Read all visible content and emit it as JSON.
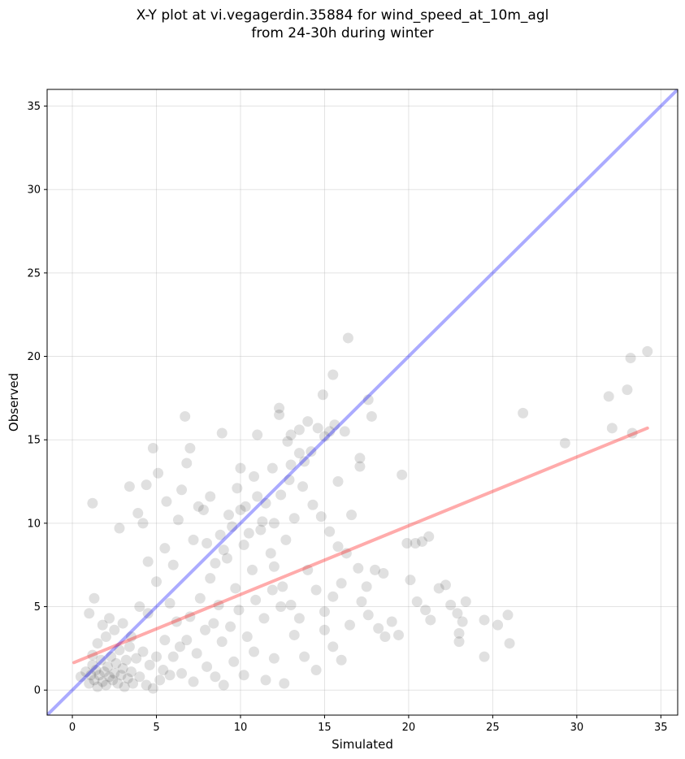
{
  "chart_data": {
    "type": "scatter",
    "title_line1": "X-Y plot at vi.vegagerdin.35884 for wind_speed_at_10m_agl",
    "title_line2": "from 24-30h during winter",
    "xlabel": "Simulated",
    "ylabel": "Observed",
    "xlim": [
      -1.5,
      36
    ],
    "ylim": [
      -1.5,
      36
    ],
    "xticks": [
      0,
      5,
      10,
      15,
      20,
      25,
      30,
      35
    ],
    "yticks": [
      0,
      5,
      10,
      15,
      20,
      25,
      30,
      35
    ],
    "grid": true,
    "point_color": "#000000",
    "point_opacity": 0.12,
    "identity_line": {
      "color": "#0000ff",
      "opacity": 0.33,
      "from": [
        -1.5,
        -1.5
      ],
      "to": [
        36,
        36
      ]
    },
    "fit_line": {
      "color": "#ff0000",
      "opacity": 0.33,
      "from": [
        0.1,
        1.65
      ],
      "to": [
        34.2,
        15.7
      ]
    },
    "points": [
      [
        0.5,
        0.8
      ],
      [
        0.8,
        1.1
      ],
      [
        1.0,
        0.4
      ],
      [
        1.1,
        0.9
      ],
      [
        1.2,
        1.5
      ],
      [
        1.3,
        0.6
      ],
      [
        1.4,
        1.2
      ],
      [
        1.5,
        0.2
      ],
      [
        1.6,
        0.9
      ],
      [
        1.7,
        1.8
      ],
      [
        1.8,
        0.5
      ],
      [
        1.9,
        1.1
      ],
      [
        2.0,
        0.3
      ],
      [
        2.1,
        1.4
      ],
      [
        2.2,
        0.8
      ],
      [
        2.3,
        2.0
      ],
      [
        2.4,
        0.6
      ],
      [
        2.5,
        1.0
      ],
      [
        2.6,
        1.6
      ],
      [
        2.7,
        0.4
      ],
      [
        2.8,
        2.4
      ],
      [
        2.9,
        0.9
      ],
      [
        3.0,
        1.3
      ],
      [
        3.1,
        0.2
      ],
      [
        3.2,
        1.8
      ],
      [
        3.3,
        0.7
      ],
      [
        3.4,
        2.6
      ],
      [
        3.5,
        1.1
      ],
      [
        3.6,
        0.4
      ],
      [
        3.8,
        1.9
      ],
      [
        4.0,
        0.8
      ],
      [
        4.2,
        2.3
      ],
      [
        4.4,
        0.3
      ],
      [
        4.6,
        1.5
      ],
      [
        4.8,
        0.1
      ],
      [
        5.0,
        2.0
      ],
      [
        5.2,
        0.6
      ],
      [
        5.4,
        1.2
      ],
      [
        1.2,
        2.1
      ],
      [
        1.5,
        2.8
      ],
      [
        2.0,
        3.2
      ],
      [
        2.5,
        3.6
      ],
      [
        2.2,
        4.3
      ],
      [
        1.8,
        3.9
      ],
      [
        1.0,
        4.6
      ],
      [
        1.3,
        5.5
      ],
      [
        3.0,
        4.0
      ],
      [
        3.5,
        3.2
      ],
      [
        4.0,
        5.0
      ],
      [
        4.5,
        4.6
      ],
      [
        1.2,
        11.2
      ],
      [
        2.8,
        9.7
      ],
      [
        3.4,
        12.2
      ],
      [
        4.2,
        10.0
      ],
      [
        3.9,
        10.6
      ],
      [
        4.4,
        12.3
      ],
      [
        4.8,
        14.5
      ],
      [
        5.1,
        13.0
      ],
      [
        5.6,
        11.3
      ],
      [
        4.5,
        7.7
      ],
      [
        5.0,
        6.5
      ],
      [
        5.5,
        8.5
      ],
      [
        6.0,
        7.5
      ],
      [
        6.3,
        10.2
      ],
      [
        6.5,
        12.0
      ],
      [
        6.8,
        13.6
      ],
      [
        7.0,
        14.5
      ],
      [
        6.7,
        16.4
      ],
      [
        7.2,
        9.0
      ],
      [
        7.5,
        11.0
      ],
      [
        5.8,
        5.2
      ],
      [
        6.2,
        4.1
      ],
      [
        6.8,
        3.0
      ],
      [
        7.4,
        2.2
      ],
      [
        8.0,
        1.4
      ],
      [
        8.5,
        0.8
      ],
      [
        9.0,
        0.3
      ],
      [
        9.6,
        1.7
      ],
      [
        10.2,
        0.9
      ],
      [
        10.8,
        2.3
      ],
      [
        11.5,
        0.6
      ],
      [
        12.0,
        1.9
      ],
      [
        12.6,
        0.4
      ],
      [
        13.2,
        3.3
      ],
      [
        13.8,
        2.0
      ],
      [
        14.5,
        1.2
      ],
      [
        15.0,
        3.6
      ],
      [
        15.5,
        2.6
      ],
      [
        16.0,
        1.8
      ],
      [
        16.5,
        3.9
      ],
      [
        7.0,
        4.4
      ],
      [
        7.6,
        5.5
      ],
      [
        8.2,
        6.7
      ],
      [
        8.7,
        5.1
      ],
      [
        9.2,
        7.9
      ],
      [
        9.7,
        6.1
      ],
      [
        10.2,
        8.7
      ],
      [
        10.7,
        7.2
      ],
      [
        11.2,
        9.6
      ],
      [
        11.8,
        8.2
      ],
      [
        7.8,
        10.8
      ],
      [
        8.2,
        11.6
      ],
      [
        8.8,
        9.3
      ],
      [
        9.3,
        10.5
      ],
      [
        9.8,
        12.1
      ],
      [
        10.3,
        11.0
      ],
      [
        10.8,
        12.8
      ],
      [
        11.3,
        10.1
      ],
      [
        11.9,
        13.3
      ],
      [
        12.4,
        11.7
      ],
      [
        8.9,
        15.4
      ],
      [
        10.0,
        13.3
      ],
      [
        11.0,
        15.3
      ],
      [
        12.3,
        16.9
      ],
      [
        12.3,
        16.5
      ],
      [
        13.0,
        15.3
      ],
      [
        13.5,
        15.6
      ],
      [
        14.0,
        16.1
      ],
      [
        14.6,
        15.7
      ],
      [
        15.0,
        15.2
      ],
      [
        15.3,
        15.5
      ],
      [
        15.6,
        15.9
      ],
      [
        16.2,
        15.5
      ],
      [
        16.4,
        21.1
      ],
      [
        15.5,
        18.9
      ],
      [
        14.9,
        17.7
      ],
      [
        17.6,
        17.4
      ],
      [
        17.8,
        16.4
      ],
      [
        17.1,
        13.9
      ],
      [
        17.1,
        13.4
      ],
      [
        16.6,
        10.5
      ],
      [
        15.8,
        12.5
      ],
      [
        13.0,
        13.5
      ],
      [
        13.7,
        12.2
      ],
      [
        14.3,
        11.1
      ],
      [
        14.8,
        10.4
      ],
      [
        15.3,
        9.5
      ],
      [
        15.8,
        8.6
      ],
      [
        16.3,
        8.2
      ],
      [
        12.7,
        9.0
      ],
      [
        13.2,
        10.3
      ],
      [
        12.0,
        7.4
      ],
      [
        12.5,
        6.2
      ],
      [
        13.0,
        5.1
      ],
      [
        13.5,
        4.3
      ],
      [
        14.0,
        7.2
      ],
      [
        14.5,
        6.0
      ],
      [
        15.0,
        4.7
      ],
      [
        15.5,
        5.6
      ],
      [
        16.0,
        6.4
      ],
      [
        17.0,
        7.3
      ],
      [
        17.5,
        6.2
      ],
      [
        18.0,
        7.2
      ],
      [
        18.5,
        7.0
      ],
      [
        17.2,
        5.3
      ],
      [
        17.6,
        4.5
      ],
      [
        18.2,
        3.7
      ],
      [
        18.6,
        3.2
      ],
      [
        19.0,
        4.1
      ],
      [
        19.4,
        3.3
      ],
      [
        19.6,
        12.9
      ],
      [
        19.9,
        8.8
      ],
      [
        20.4,
        8.8
      ],
      [
        20.8,
        8.9
      ],
      [
        21.2,
        9.2
      ],
      [
        20.1,
        6.6
      ],
      [
        20.5,
        5.3
      ],
      [
        21.0,
        4.8
      ],
      [
        21.3,
        4.2
      ],
      [
        21.8,
        6.1
      ],
      [
        22.2,
        6.3
      ],
      [
        22.5,
        5.1
      ],
      [
        22.9,
        4.6
      ],
      [
        23.2,
        4.1
      ],
      [
        23.4,
        5.3
      ],
      [
        23.0,
        2.9
      ],
      [
        23.0,
        3.4
      ],
      [
        24.5,
        2.0
      ],
      [
        24.5,
        4.2
      ],
      [
        25.3,
        3.9
      ],
      [
        25.9,
        4.5
      ],
      [
        26.0,
        2.8
      ],
      [
        26.8,
        16.6
      ],
      [
        29.3,
        14.8
      ],
      [
        31.9,
        17.6
      ],
      [
        32.1,
        15.7
      ],
      [
        33.0,
        18.0
      ],
      [
        33.2,
        19.9
      ],
      [
        33.3,
        15.4
      ],
      [
        34.2,
        20.3
      ],
      [
        5.5,
        3.0
      ],
      [
        6.0,
        2.0
      ],
      [
        6.5,
        1.0
      ],
      [
        7.2,
        0.5
      ],
      [
        5.8,
        0.9
      ],
      [
        6.4,
        2.6
      ],
      [
        7.9,
        3.6
      ],
      [
        8.4,
        4.0
      ],
      [
        8.9,
        2.9
      ],
      [
        9.4,
        3.8
      ],
      [
        9.9,
        4.8
      ],
      [
        10.4,
        3.2
      ],
      [
        10.9,
        5.4
      ],
      [
        11.4,
        4.3
      ],
      [
        11.9,
        6.0
      ],
      [
        12.4,
        5.0
      ],
      [
        9.0,
        8.4
      ],
      [
        8.5,
        7.6
      ],
      [
        8.0,
        8.8
      ],
      [
        9.5,
        9.8
      ],
      [
        10.0,
        10.8
      ],
      [
        10.5,
        9.4
      ],
      [
        11.0,
        11.6
      ],
      [
        11.5,
        11.2
      ],
      [
        12.0,
        10.0
      ],
      [
        12.9,
        12.6
      ],
      [
        13.5,
        14.2
      ],
      [
        14.2,
        14.3
      ],
      [
        13.8,
        13.7
      ],
      [
        12.8,
        14.9
      ]
    ]
  }
}
